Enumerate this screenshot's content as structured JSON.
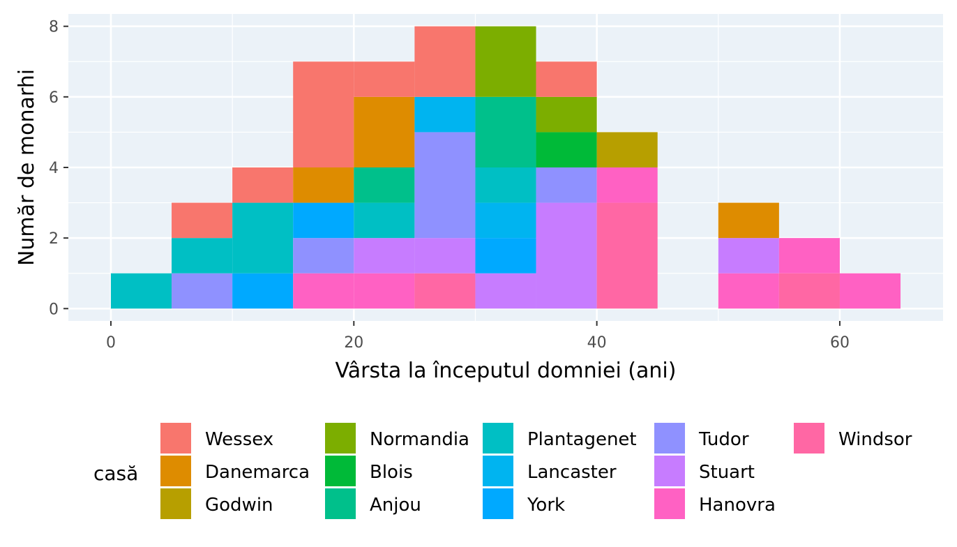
{
  "chart_data": {
    "type": "bar",
    "subtype": "stacked-histogram",
    "title": "",
    "xlabel": "Vârsta la începutul domniei (ani)",
    "ylabel": "Număr de monarhi",
    "xlim": [
      -3.5,
      68.5
    ],
    "ylim": [
      -0.35,
      8.35
    ],
    "xticks": [
      0,
      20,
      40,
      60
    ],
    "yticks": [
      0,
      2,
      4,
      6,
      8
    ],
    "bin_width": 5,
    "bins": [
      0,
      5,
      10,
      15,
      20,
      25,
      30,
      35,
      40,
      45,
      50,
      55,
      60
    ],
    "grid": true,
    "legend_title": "casă",
    "legend_position": "bottom",
    "series": [
      {
        "name": "Wessex",
        "color": "#F8766D",
        "values": [
          0,
          1,
          1,
          3,
          1,
          2,
          0,
          1,
          0,
          0,
          0,
          0,
          0
        ]
      },
      {
        "name": "Danemarca",
        "color": "#DE8C00",
        "values": [
          0,
          0,
          0,
          1,
          2,
          0,
          0,
          0,
          0,
          0,
          1,
          0,
          0
        ]
      },
      {
        "name": "Godwin",
        "color": "#B79F00",
        "values": [
          0,
          0,
          0,
          0,
          0,
          0,
          0,
          0,
          1,
          0,
          0,
          0,
          0
        ]
      },
      {
        "name": "Normandia",
        "color": "#7CAE00",
        "values": [
          0,
          0,
          0,
          0,
          0,
          0,
          2,
          1,
          0,
          0,
          0,
          0,
          0
        ]
      },
      {
        "name": "Blois",
        "color": "#00BA38",
        "values": [
          0,
          0,
          0,
          0,
          0,
          0,
          0,
          1,
          0,
          0,
          0,
          0,
          0
        ]
      },
      {
        "name": "Anjou",
        "color": "#00C08B",
        "values": [
          0,
          0,
          0,
          0,
          1,
          0,
          2,
          0,
          0,
          0,
          0,
          0,
          0
        ]
      },
      {
        "name": "Plantagenet",
        "color": "#00BFC4",
        "values": [
          1,
          1,
          2,
          0,
          1,
          0,
          1,
          0,
          0,
          0,
          0,
          0,
          0
        ]
      },
      {
        "name": "Lancaster",
        "color": "#00B4F0",
        "values": [
          0,
          0,
          0,
          0,
          0,
          1,
          1,
          0,
          0,
          0,
          0,
          0,
          0
        ]
      },
      {
        "name": "York",
        "color": "#00A9FF",
        "values": [
          0,
          0,
          1,
          1,
          0,
          0,
          1,
          0,
          0,
          0,
          0,
          0,
          0
        ]
      },
      {
        "name": "Tudor",
        "color": "#8F91FF",
        "values": [
          0,
          1,
          0,
          1,
          0,
          3,
          0,
          1,
          0,
          0,
          0,
          0,
          0
        ]
      },
      {
        "name": "Stuart",
        "color": "#C77CFF",
        "values": [
          0,
          0,
          0,
          0,
          1,
          1,
          1,
          3,
          0,
          0,
          1,
          0,
          0
        ]
      },
      {
        "name": "Hanovra",
        "color": "#FF61C3",
        "values": [
          0,
          0,
          0,
          1,
          1,
          0,
          0,
          0,
          1,
          0,
          1,
          1,
          1
        ]
      },
      {
        "name": "Windsor",
        "color": "#FF67A4",
        "values": [
          0,
          0,
          0,
          0,
          0,
          1,
          0,
          0,
          3,
          0,
          0,
          1,
          0
        ]
      }
    ]
  }
}
